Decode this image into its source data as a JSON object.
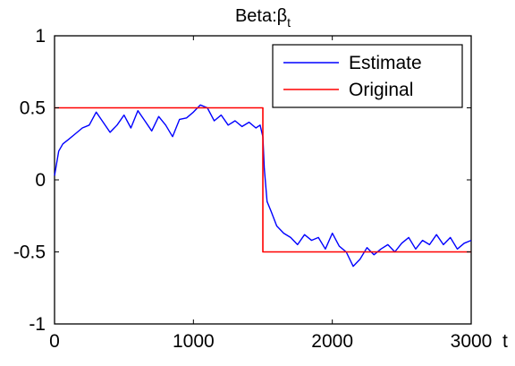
{
  "chart_data": {
    "type": "line",
    "title": "Beta:",
    "title_symbol": "β",
    "title_subscript": "t",
    "xlabel": "t",
    "ylabel": "",
    "xlim": [
      0,
      3000
    ],
    "ylim": [
      -1,
      1
    ],
    "xticks": [
      0,
      1000,
      2000,
      3000
    ],
    "xtick_labels": [
      "0",
      "1000",
      "2000",
      "3000"
    ],
    "yticks": [
      1,
      0.5,
      0,
      -0.5,
      -1
    ],
    "ytick_labels": [
      "1",
      "0.5",
      "0",
      "-0.5",
      "-1"
    ],
    "grid": false,
    "legend_position": "top-right",
    "series": [
      {
        "name": "Estimate",
        "color": "#0000ff",
        "x": [
          0,
          30,
          60,
          100,
          150,
          200,
          250,
          300,
          350,
          400,
          450,
          500,
          550,
          600,
          650,
          700,
          750,
          800,
          850,
          900,
          950,
          1000,
          1050,
          1100,
          1150,
          1200,
          1250,
          1300,
          1350,
          1400,
          1450,
          1480,
          1500,
          1510,
          1530,
          1560,
          1600,
          1650,
          1700,
          1750,
          1800,
          1850,
          1900,
          1950,
          2000,
          2050,
          2100,
          2150,
          2200,
          2250,
          2300,
          2350,
          2400,
          2450,
          2500,
          2550,
          2600,
          2650,
          2700,
          2750,
          2800,
          2850,
          2900,
          2950,
          3000
        ],
        "y": [
          0.03,
          0.2,
          0.25,
          0.28,
          0.32,
          0.36,
          0.38,
          0.47,
          0.4,
          0.33,
          0.38,
          0.45,
          0.36,
          0.48,
          0.41,
          0.34,
          0.44,
          0.38,
          0.3,
          0.42,
          0.43,
          0.47,
          0.52,
          0.5,
          0.41,
          0.45,
          0.38,
          0.41,
          0.37,
          0.4,
          0.36,
          0.38,
          0.3,
          0.08,
          -0.15,
          -0.22,
          -0.32,
          -0.37,
          -0.4,
          -0.45,
          -0.38,
          -0.42,
          -0.4,
          -0.48,
          -0.37,
          -0.46,
          -0.5,
          -0.6,
          -0.55,
          -0.47,
          -0.52,
          -0.48,
          -0.45,
          -0.5,
          -0.44,
          -0.4,
          -0.48,
          -0.42,
          -0.45,
          -0.38,
          -0.45,
          -0.4,
          -0.48,
          -0.44,
          -0.42
        ]
      },
      {
        "name": "Original",
        "color": "#ff0000",
        "x": [
          0,
          1500,
          1500,
          3000
        ],
        "y": [
          0.5,
          0.5,
          -0.5,
          -0.5
        ]
      }
    ]
  }
}
